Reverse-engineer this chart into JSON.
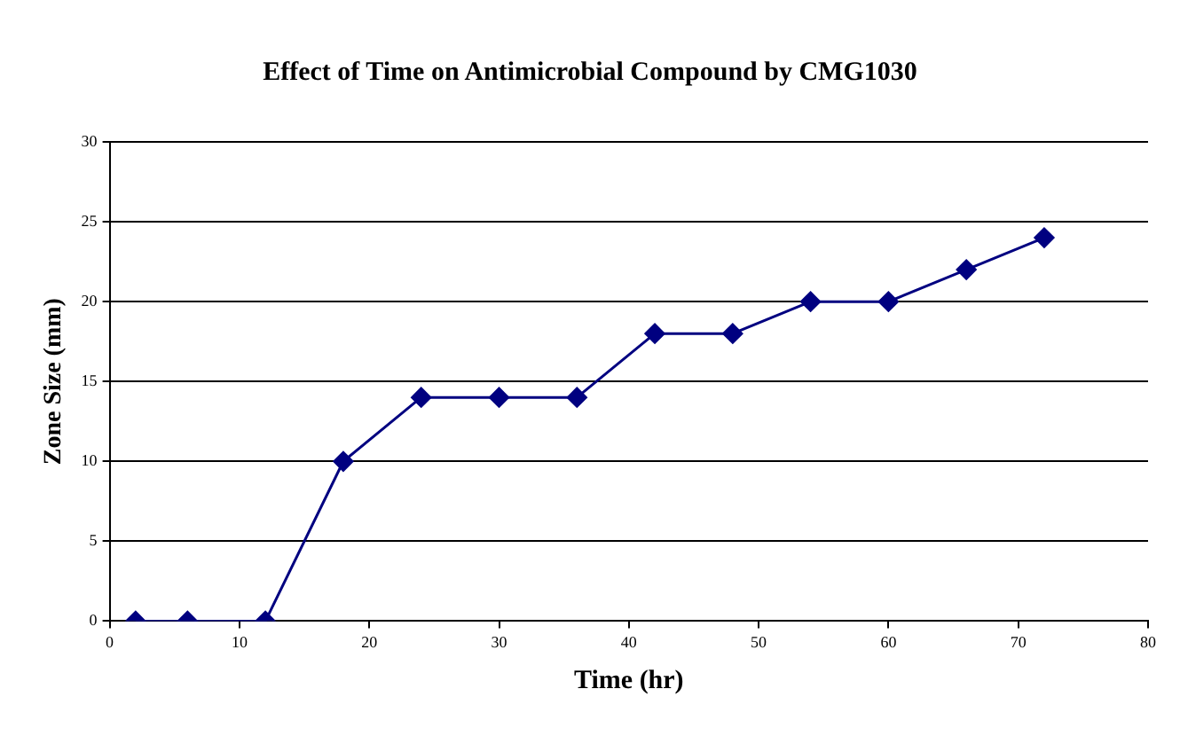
{
  "chart_data": {
    "type": "line",
    "title": "Effect of Time on Antimicrobial Compound by CMG1030",
    "xlabel": "Time (hr)",
    "ylabel": "Zone Size (mm)",
    "x": [
      2,
      6,
      12,
      18,
      24,
      30,
      36,
      42,
      48,
      54,
      60,
      66,
      72
    ],
    "series": [
      {
        "color": "#000080",
        "values": [
          0,
          0,
          0,
          10,
          14,
          14,
          14,
          18,
          18,
          20,
          20,
          22,
          24
        ]
      }
    ],
    "xlim": [
      0,
      80
    ],
    "xticks": [
      0,
      10,
      20,
      30,
      40,
      50,
      60,
      70,
      80
    ],
    "ylim": [
      0,
      30
    ],
    "yticks": [
      0,
      5,
      10,
      15,
      20,
      25,
      30
    ],
    "grid": "y",
    "legend": false,
    "marker": "diamond",
    "line_style": "solid"
  }
}
